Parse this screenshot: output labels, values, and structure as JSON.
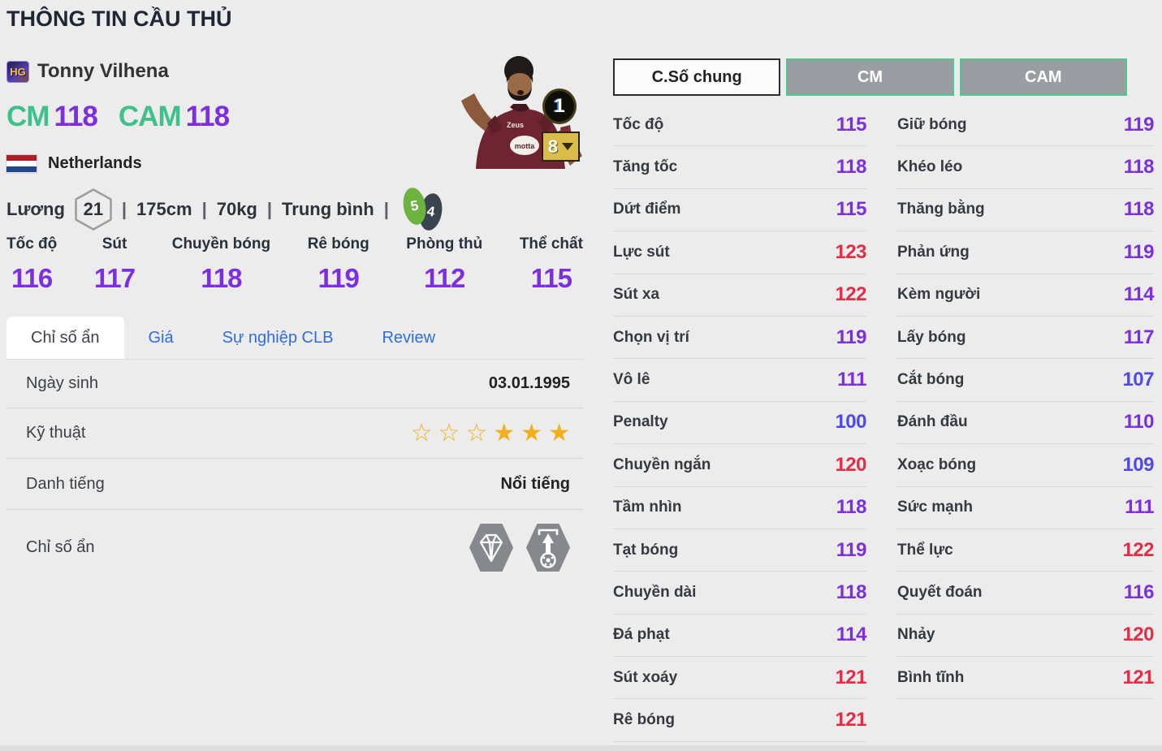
{
  "page": {
    "title": "THÔNG TIN CẦU THỦ"
  },
  "player": {
    "badge": "HG",
    "name": "Tonny Vilhena",
    "positions": [
      {
        "label": "CM",
        "value": "118"
      },
      {
        "label": "CAM",
        "value": "118"
      }
    ],
    "nation": "Netherlands",
    "salary_label": "Lương",
    "salary_value": "21",
    "height": "175cm",
    "weight": "70kg",
    "body_type": "Trung bình",
    "separator": "|",
    "foot_left": "5",
    "foot_right": "4",
    "enhance_level": "1",
    "grade_level": "8"
  },
  "summary_stats": [
    {
      "label": "Tốc độ",
      "value": "116"
    },
    {
      "label": "Sút",
      "value": "117"
    },
    {
      "label": "Chuyền bóng",
      "value": "118"
    },
    {
      "label": "Rê bóng",
      "value": "119"
    },
    {
      "label": "Phòng thủ",
      "value": "112"
    },
    {
      "label": "Thể chất",
      "value": "115"
    }
  ],
  "tabs": [
    {
      "label": "Chỉ số ẩn",
      "active": true
    },
    {
      "label": "Giá",
      "active": false
    },
    {
      "label": "Sự nghiệp CLB",
      "active": false
    },
    {
      "label": "Review",
      "active": false
    }
  ],
  "info_rows": {
    "birth_label": "Ngày sinh",
    "birth_value": "03.01.1995",
    "skill_label": "Kỹ thuật",
    "stars": [
      "empty",
      "empty",
      "empty",
      "filled",
      "filled",
      "filled"
    ],
    "fame_label": "Danh tiếng",
    "fame_value": "Nổi tiếng",
    "hidden_label": "Chỉ số ẩn",
    "hidden_icons": [
      "gem-icon",
      "throw-in-icon"
    ]
  },
  "detail_buttons": [
    {
      "label": "C.Số chung",
      "active": true
    },
    {
      "label": "CM",
      "active": false
    },
    {
      "label": "CAM",
      "active": false
    }
  ],
  "detail_stats": {
    "left": [
      {
        "label": "Tốc độ",
        "value": "115"
      },
      {
        "label": "Tăng tốc",
        "value": "118"
      },
      {
        "label": "Dứt điểm",
        "value": "115"
      },
      {
        "label": "Lực sút",
        "value": "123"
      },
      {
        "label": "Sút xa",
        "value": "122"
      },
      {
        "label": "Chọn vị trí",
        "value": "119"
      },
      {
        "label": "Vô lê",
        "value": "111"
      },
      {
        "label": "Penalty",
        "value": "100"
      },
      {
        "label": "Chuyền ngắn",
        "value": "120"
      },
      {
        "label": "Tầm nhìn",
        "value": "118"
      },
      {
        "label": "Tạt bóng",
        "value": "119"
      },
      {
        "label": "Chuyền dài",
        "value": "118"
      },
      {
        "label": "Đá phạt",
        "value": "114"
      },
      {
        "label": "Sút xoáy",
        "value": "121"
      },
      {
        "label": "Rê bóng",
        "value": "121"
      }
    ],
    "right": [
      {
        "label": "Giữ bóng",
        "value": "119"
      },
      {
        "label": "Khéo léo",
        "value": "118"
      },
      {
        "label": "Thăng bằng",
        "value": "118"
      },
      {
        "label": "Phản ứng",
        "value": "119"
      },
      {
        "label": "Kèm người",
        "value": "114"
      },
      {
        "label": "Lấy bóng",
        "value": "117"
      },
      {
        "label": "Cắt bóng",
        "value": "107"
      },
      {
        "label": "Đánh đầu",
        "value": "110"
      },
      {
        "label": "Xoạc bóng",
        "value": "109"
      },
      {
        "label": "Sức mạnh",
        "value": "111"
      },
      {
        "label": "Thể lực",
        "value": "122"
      },
      {
        "label": "Quyết đoán",
        "value": "116"
      },
      {
        "label": "Nhảy",
        "value": "120"
      },
      {
        "label": "Bình tĩnh",
        "value": "121"
      }
    ]
  },
  "colors": {
    "accent_green": "#3fc18c",
    "stat_purple": "#7b2fe0",
    "stat_red": "#e02e46",
    "stat_blue": "#4d4be4",
    "grade_gold": "#d9bc4a",
    "tab_link_blue": "#2e6de4",
    "button_gray": "#9a9ea3",
    "icon_gray": "#85888c",
    "star_gold": "#f2b01e",
    "flag_red": "#ae1c28",
    "flag_blue": "#21468b"
  }
}
